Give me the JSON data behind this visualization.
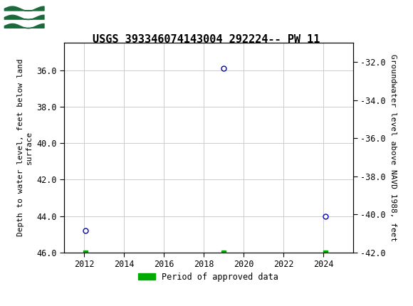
{
  "title": "USGS 393346074143004 292224-- PW 11",
  "header_bg_color": "#1a6b3c",
  "plot_bg_color": "#ffffff",
  "grid_color": "#cccccc",
  "data_points": [
    {
      "year": 2012.08,
      "depth": 44.8
    },
    {
      "year": 2019.0,
      "depth": 35.9
    },
    {
      "year": 2024.1,
      "depth": 44.0
    }
  ],
  "approved_data_points": [
    {
      "year": 2012.08,
      "y_val": 46.0
    },
    {
      "year": 2019.0,
      "y_val": 46.0
    },
    {
      "year": 2024.1,
      "y_val": 46.0
    }
  ],
  "point_color": "#0000cc",
  "point_marker": "o",
  "point_marker_size": 5,
  "approved_color": "#00aa00",
  "approved_marker": "s",
  "approved_marker_size": 4,
  "ylim_left": [
    46.0,
    34.5
  ],
  "ylim_right": [
    -42.0,
    -31.0
  ],
  "xlim": [
    2011.0,
    2025.5
  ],
  "xticks": [
    2012,
    2014,
    2016,
    2018,
    2020,
    2022,
    2024
  ],
  "yticks_left": [
    36.0,
    38.0,
    40.0,
    42.0,
    44.0,
    46.0
  ],
  "yticks_right": [
    -32.0,
    -34.0,
    -36.0,
    -38.0,
    -40.0,
    -42.0
  ],
  "ylabel_left": "Depth to water level, feet below land\nsurface",
  "ylabel_right": "Groundwater level above NAVD 1988, feet",
  "legend_label": "Period of approved data",
  "font_family": "monospace",
  "title_fontsize": 11,
  "axis_label_fontsize": 8,
  "tick_fontsize": 8.5
}
